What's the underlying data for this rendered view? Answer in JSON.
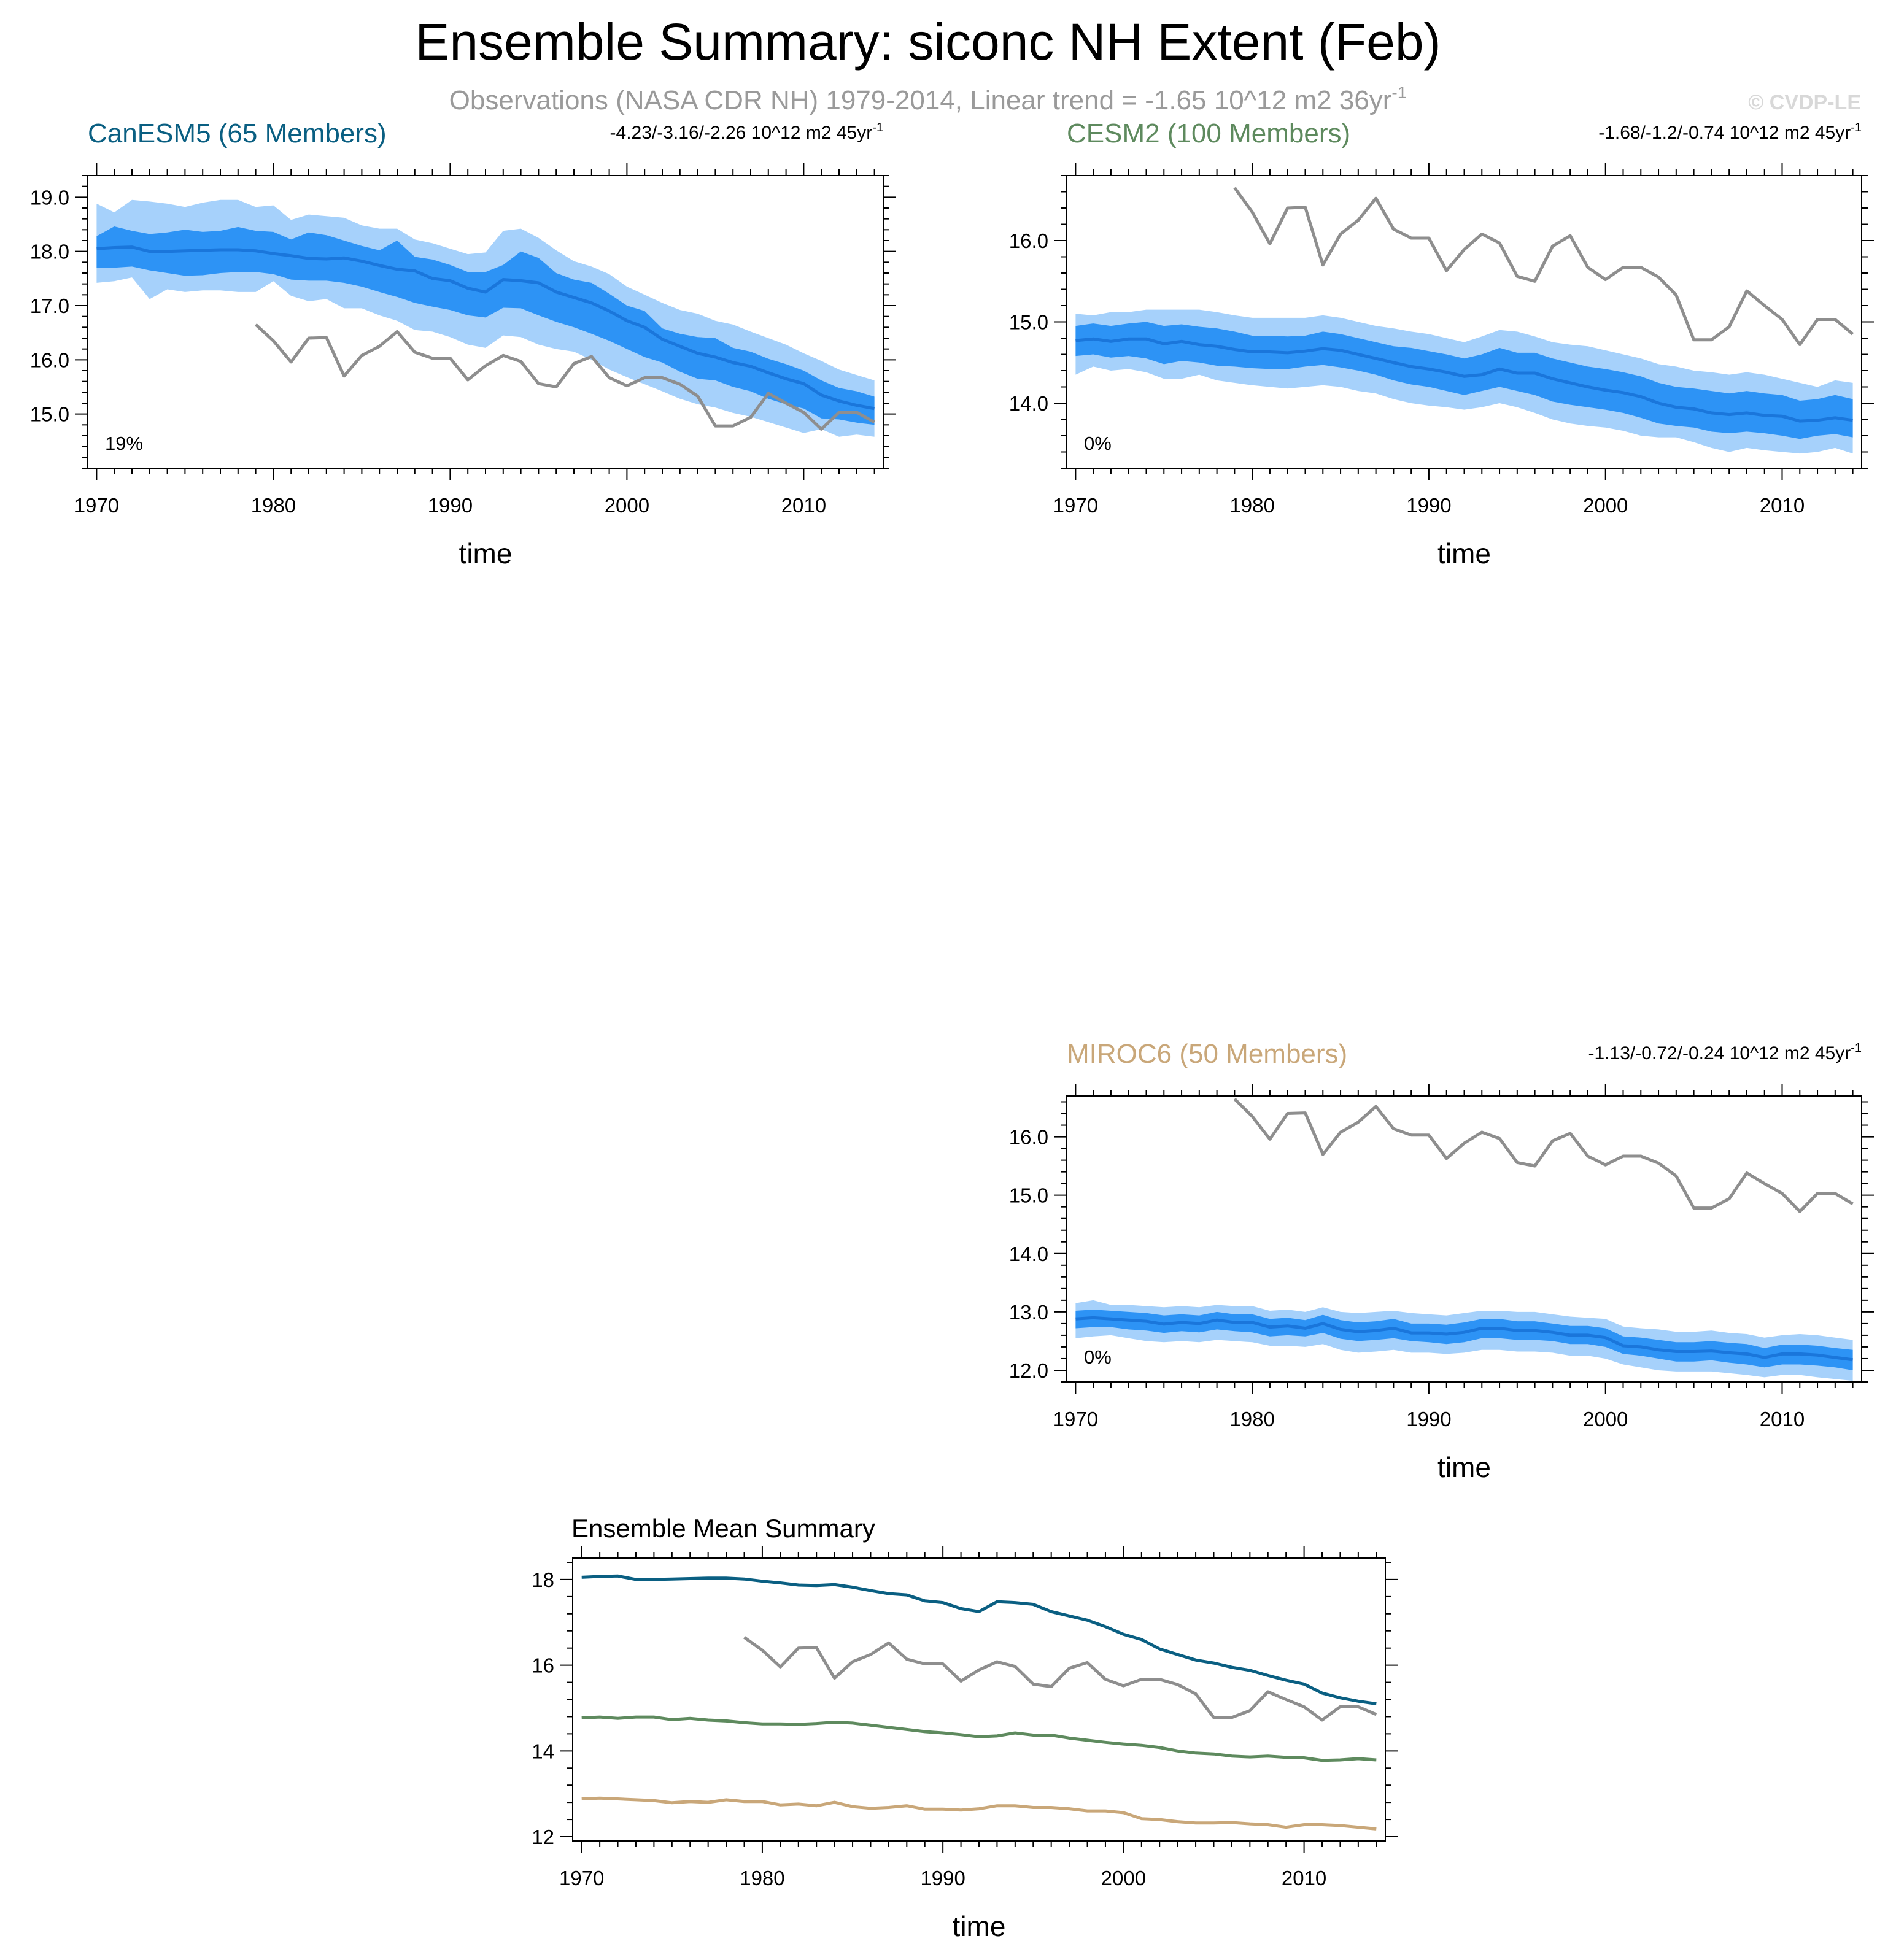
{
  "title": "Ensemble Summary: siconc NH Extent (Feb)",
  "subtitle": "Observations (NASA CDR NH) 1979-2014, Linear trend = -1.65 10^12 m2 36yr",
  "subtitle_exp": "-1",
  "copyright": "© CVDP-LE",
  "colors": {
    "band_outer": "#a6d1fb",
    "band_inner": "#2d93f5",
    "ens_mean": "#1a76db",
    "obs": "#8e8e8e",
    "canesm5": "#0a5f82",
    "cesm2": "#5e8a5e",
    "miroc6": "#c9a779"
  },
  "chart_data": [
    {
      "id": "canesm5",
      "type": "area",
      "title": "CanESM5 (65 Members)",
      "trend_text": "-4.23/-3.16/-2.26 10^12 m2 45yr",
      "trend_exp": "-1",
      "percent_label": "19%",
      "xlabel": "time",
      "xlim": [
        1969.5,
        2014.5
      ],
      "ylim": [
        14.0,
        19.4
      ],
      "xticks": [
        "1970",
        "1980",
        "1990",
        "2000",
        "2010"
      ],
      "yticks": [
        "15.0",
        "16.0",
        "17.0",
        "18.0",
        "19.0"
      ],
      "x_start": 1970,
      "ens_mean": [
        18.05,
        18.07,
        18.08,
        18.0,
        18.0,
        18.01,
        18.02,
        18.03,
        18.03,
        18.01,
        17.96,
        17.92,
        17.87,
        17.86,
        17.88,
        17.82,
        17.74,
        17.67,
        17.64,
        17.5,
        17.46,
        17.32,
        17.25,
        17.48,
        17.46,
        17.42,
        17.25,
        17.15,
        17.05,
        16.9,
        16.72,
        16.6,
        16.38,
        16.25,
        16.12,
        16.05,
        15.95,
        15.88,
        15.76,
        15.65,
        15.56,
        15.35,
        15.24,
        15.16,
        15.1
      ],
      "band_inner_low": [
        17.7,
        17.7,
        17.72,
        17.65,
        17.6,
        17.55,
        17.56,
        17.6,
        17.62,
        17.62,
        17.58,
        17.48,
        17.46,
        17.46,
        17.42,
        17.35,
        17.25,
        17.16,
        17.05,
        16.98,
        16.92,
        16.82,
        16.78,
        16.96,
        16.95,
        16.82,
        16.7,
        16.6,
        16.48,
        16.35,
        16.2,
        16.05,
        15.95,
        15.78,
        15.65,
        15.62,
        15.5,
        15.42,
        15.28,
        15.18,
        15.1,
        14.92,
        14.9,
        14.84,
        14.8
      ],
      "band_inner_high": [
        18.28,
        18.46,
        18.38,
        18.32,
        18.35,
        18.4,
        18.36,
        18.38,
        18.45,
        18.38,
        18.36,
        18.22,
        18.35,
        18.3,
        18.2,
        18.1,
        18.02,
        18.2,
        17.9,
        17.85,
        17.75,
        17.62,
        17.62,
        17.75,
        18.0,
        17.88,
        17.6,
        17.48,
        17.42,
        17.22,
        17.0,
        16.9,
        16.58,
        16.48,
        16.42,
        16.4,
        16.22,
        16.15,
        16.02,
        15.92,
        15.8,
        15.62,
        15.48,
        15.42,
        15.32
      ],
      "band_outer_low": [
        17.42,
        17.45,
        17.52,
        17.12,
        17.3,
        17.25,
        17.28,
        17.28,
        17.25,
        17.25,
        17.45,
        17.18,
        17.08,
        17.12,
        16.95,
        16.95,
        16.82,
        16.72,
        16.55,
        16.52,
        16.42,
        16.28,
        16.22,
        16.45,
        16.42,
        16.28,
        16.2,
        16.15,
        16.0,
        15.82,
        15.68,
        15.55,
        15.42,
        15.28,
        15.18,
        15.12,
        15.02,
        14.95,
        14.85,
        14.75,
        14.65,
        14.72,
        14.58,
        14.62,
        14.58
      ],
      "band_outer_high": [
        18.88,
        18.72,
        18.95,
        18.92,
        18.88,
        18.82,
        18.9,
        18.95,
        18.95,
        18.82,
        18.85,
        18.58,
        18.68,
        18.65,
        18.62,
        18.48,
        18.42,
        18.42,
        18.22,
        18.15,
        18.05,
        17.95,
        17.98,
        18.38,
        18.42,
        18.25,
        18.02,
        17.82,
        17.72,
        17.58,
        17.35,
        17.2,
        17.05,
        16.92,
        16.85,
        16.72,
        16.65,
        16.52,
        16.4,
        16.28,
        16.12,
        15.98,
        15.82,
        15.72,
        15.62
      ],
      "obs_x_start": 1979,
      "obs": [
        16.65,
        16.35,
        15.96,
        16.4,
        16.41,
        15.7,
        16.08,
        16.25,
        16.52,
        16.14,
        16.03,
        16.03,
        15.63,
        15.89,
        16.08,
        15.97,
        15.56,
        15.5,
        15.93,
        16.06,
        15.67,
        15.52,
        15.67,
        15.67,
        15.55,
        15.33,
        14.78,
        14.78,
        14.94,
        15.38,
        15.2,
        15.03,
        14.72,
        15.03,
        15.03,
        14.85
      ]
    },
    {
      "id": "cesm2",
      "type": "area",
      "title": "CESM2 (100 Members)",
      "trend_text": "-1.68/-1.2/-0.74 10^12 m2 45yr",
      "trend_exp": "-1",
      "percent_label": "0%",
      "xlabel": "time",
      "xlim": [
        1969.5,
        2014.5
      ],
      "ylim": [
        13.2,
        16.8
      ],
      "xticks": [
        "1970",
        "1980",
        "1990",
        "2000",
        "2010"
      ],
      "yticks": [
        "14.0",
        "15.0",
        "16.0"
      ],
      "x_start": 1970,
      "ens_mean": [
        14.77,
        14.79,
        14.76,
        14.79,
        14.79,
        14.73,
        14.76,
        14.72,
        14.7,
        14.66,
        14.63,
        14.63,
        14.62,
        14.64,
        14.67,
        14.65,
        14.6,
        14.55,
        14.5,
        14.45,
        14.42,
        14.38,
        14.33,
        14.35,
        14.42,
        14.37,
        14.37,
        14.3,
        14.25,
        14.2,
        14.16,
        14.13,
        14.08,
        14.0,
        13.95,
        13.93,
        13.88,
        13.86,
        13.88,
        13.85,
        13.84,
        13.78,
        13.79,
        13.82,
        13.79
      ],
      "band_inner_low": [
        14.58,
        14.6,
        14.56,
        14.58,
        14.55,
        14.48,
        14.52,
        14.5,
        14.46,
        14.45,
        14.43,
        14.42,
        14.42,
        14.45,
        14.47,
        14.44,
        14.4,
        14.35,
        14.28,
        14.23,
        14.2,
        14.15,
        14.1,
        14.15,
        14.2,
        14.15,
        14.1,
        14.02,
        13.98,
        13.95,
        13.92,
        13.88,
        13.82,
        13.75,
        13.72,
        13.7,
        13.65,
        13.63,
        13.65,
        13.63,
        13.6,
        13.56,
        13.6,
        13.62,
        13.58
      ],
      "band_inner_high": [
        14.95,
        14.98,
        14.95,
        14.98,
        15.0,
        14.95,
        14.97,
        14.94,
        14.92,
        14.88,
        14.83,
        14.83,
        14.82,
        14.83,
        14.88,
        14.85,
        14.8,
        14.75,
        14.7,
        14.68,
        14.64,
        14.6,
        14.55,
        14.6,
        14.68,
        14.62,
        14.62,
        14.55,
        14.5,
        14.45,
        14.42,
        14.38,
        14.33,
        14.25,
        14.2,
        14.18,
        14.15,
        14.12,
        14.15,
        14.12,
        14.1,
        14.03,
        14.05,
        14.1,
        14.05
      ],
      "band_outer_low": [
        14.35,
        14.45,
        14.4,
        14.42,
        14.38,
        14.3,
        14.3,
        14.35,
        14.28,
        14.25,
        14.22,
        14.2,
        14.18,
        14.2,
        14.22,
        14.2,
        14.15,
        14.12,
        14.05,
        14.0,
        13.97,
        13.95,
        13.92,
        13.95,
        14.0,
        13.95,
        13.88,
        13.8,
        13.75,
        13.72,
        13.7,
        13.66,
        13.6,
        13.58,
        13.58,
        13.52,
        13.45,
        13.4,
        13.45,
        13.42,
        13.4,
        13.38,
        13.4,
        13.45,
        13.38
      ],
      "band_outer_high": [
        15.1,
        15.08,
        15.12,
        15.12,
        15.15,
        15.15,
        15.15,
        15.15,
        15.12,
        15.08,
        15.05,
        15.05,
        15.05,
        15.05,
        15.08,
        15.05,
        15.0,
        14.95,
        14.92,
        14.88,
        14.85,
        14.8,
        14.75,
        14.82,
        14.9,
        14.88,
        14.82,
        14.75,
        14.72,
        14.7,
        14.65,
        14.6,
        14.55,
        14.48,
        14.45,
        14.4,
        14.38,
        14.35,
        14.38,
        14.35,
        14.3,
        14.25,
        14.2,
        14.28,
        14.25
      ],
      "obs_x_start": 1979,
      "obs": [
        16.65,
        16.35,
        15.96,
        16.4,
        16.41,
        15.7,
        16.08,
        16.25,
        16.52,
        16.14,
        16.03,
        16.03,
        15.63,
        15.89,
        16.08,
        15.97,
        15.56,
        15.5,
        15.93,
        16.06,
        15.67,
        15.52,
        15.67,
        15.67,
        15.55,
        15.33,
        14.78,
        14.78,
        14.94,
        15.38,
        15.2,
        15.03,
        14.72,
        15.03,
        15.03,
        14.85
      ]
    },
    {
      "id": "miroc6",
      "type": "area",
      "title": "MIROC6 (50 Members)",
      "trend_text": "-1.13/-0.72/-0.24 10^12 m2 45yr",
      "trend_exp": "-1",
      "percent_label": "0%",
      "xlabel": "time",
      "xlim": [
        1969.5,
        2014.5
      ],
      "ylim": [
        11.8,
        16.7
      ],
      "xticks": [
        "1970",
        "1980",
        "1990",
        "2000",
        "2010"
      ],
      "yticks": [
        "12.0",
        "13.0",
        "14.0",
        "15.0",
        "16.0"
      ],
      "x_start": 1970,
      "ens_mean": [
        12.88,
        12.9,
        12.88,
        12.86,
        12.84,
        12.79,
        12.82,
        12.8,
        12.86,
        12.82,
        12.82,
        12.74,
        12.76,
        12.72,
        12.8,
        12.7,
        12.66,
        12.68,
        12.72,
        12.64,
        12.64,
        12.62,
        12.65,
        12.72,
        12.72,
        12.68,
        12.68,
        12.65,
        12.6,
        12.6,
        12.56,
        12.42,
        12.4,
        12.35,
        12.32,
        12.32,
        12.33,
        12.3,
        12.28,
        12.22,
        12.28,
        12.28,
        12.26,
        12.22,
        12.18
      ],
      "band_inner_low": [
        12.72,
        12.74,
        12.74,
        12.7,
        12.68,
        12.64,
        12.67,
        12.65,
        12.7,
        12.67,
        12.65,
        12.58,
        12.6,
        12.58,
        12.64,
        12.54,
        12.5,
        12.52,
        12.55,
        12.5,
        12.48,
        12.45,
        12.48,
        12.55,
        12.55,
        12.52,
        12.52,
        12.5,
        12.45,
        12.45,
        12.4,
        12.28,
        12.25,
        12.2,
        12.15,
        12.15,
        12.17,
        12.13,
        12.1,
        12.05,
        12.1,
        12.1,
        12.08,
        12.05,
        12.0
      ],
      "band_inner_high": [
        13.02,
        13.04,
        13.02,
        13.0,
        12.98,
        12.94,
        12.96,
        12.94,
        13.0,
        12.96,
        12.96,
        12.88,
        12.9,
        12.86,
        12.95,
        12.86,
        12.82,
        12.84,
        12.88,
        12.8,
        12.8,
        12.78,
        12.82,
        12.88,
        12.88,
        12.84,
        12.84,
        12.8,
        12.76,
        12.76,
        12.72,
        12.58,
        12.56,
        12.52,
        12.48,
        12.48,
        12.5,
        12.47,
        12.45,
        12.38,
        12.44,
        12.44,
        12.42,
        12.38,
        12.35
      ],
      "band_outer_low": [
        12.55,
        12.58,
        12.6,
        12.55,
        12.5,
        12.48,
        12.5,
        12.48,
        12.52,
        12.5,
        12.48,
        12.42,
        12.42,
        12.4,
        12.45,
        12.35,
        12.3,
        12.32,
        12.35,
        12.3,
        12.3,
        12.28,
        12.3,
        12.35,
        12.35,
        12.32,
        12.32,
        12.3,
        12.25,
        12.25,
        12.2,
        12.1,
        12.05,
        12.0,
        11.98,
        11.98,
        11.98,
        11.95,
        11.92,
        11.88,
        11.92,
        11.92,
        11.88,
        11.85,
        11.82
      ],
      "band_outer_high": [
        13.15,
        13.2,
        13.12,
        13.12,
        13.1,
        13.08,
        13.1,
        13.08,
        13.12,
        13.1,
        13.1,
        13.02,
        13.04,
        13.0,
        13.08,
        13.0,
        12.98,
        13.0,
        13.02,
        12.98,
        12.96,
        12.94,
        12.98,
        13.02,
        13.02,
        13.0,
        13.0,
        12.96,
        12.92,
        12.9,
        12.88,
        12.75,
        12.72,
        12.7,
        12.66,
        12.66,
        12.68,
        12.64,
        12.62,
        12.56,
        12.6,
        12.62,
        12.6,
        12.56,
        12.52
      ],
      "obs_x_start": 1979,
      "obs": [
        16.65,
        16.35,
        15.96,
        16.4,
        16.41,
        15.7,
        16.08,
        16.25,
        16.52,
        16.14,
        16.03,
        16.03,
        15.63,
        15.89,
        16.08,
        15.97,
        15.56,
        15.5,
        15.93,
        16.06,
        15.67,
        15.52,
        15.67,
        15.67,
        15.55,
        15.33,
        14.78,
        14.78,
        14.94,
        15.38,
        15.2,
        15.03,
        14.72,
        15.03,
        15.03,
        14.85
      ]
    },
    {
      "id": "summary",
      "type": "line",
      "title": "Ensemble Mean Summary",
      "xlabel": "time",
      "xlim": [
        1969.5,
        2014.5
      ],
      "ylim": [
        11.9,
        18.5
      ],
      "xticks": [
        "1970",
        "1980",
        "1990",
        "2000",
        "2010"
      ],
      "yticks": [
        "12",
        "14",
        "16",
        "18"
      ],
      "x_start": 1970,
      "obs_x_start": 1979,
      "obs": [
        16.65,
        16.35,
        15.96,
        16.4,
        16.41,
        15.7,
        16.08,
        16.25,
        16.52,
        16.14,
        16.03,
        16.03,
        15.63,
        15.89,
        16.08,
        15.97,
        15.56,
        15.5,
        15.93,
        16.06,
        15.67,
        15.52,
        15.67,
        15.67,
        15.55,
        15.33,
        14.78,
        14.78,
        14.94,
        15.38,
        15.2,
        15.03,
        14.72,
        15.03,
        15.03,
        14.85
      ],
      "series": [
        {
          "name": "CanESM5",
          "color_key": "canesm5",
          "values": [
            18.05,
            18.07,
            18.08,
            18.0,
            18.0,
            18.01,
            18.02,
            18.03,
            18.03,
            18.01,
            17.96,
            17.92,
            17.87,
            17.86,
            17.88,
            17.82,
            17.74,
            17.67,
            17.64,
            17.5,
            17.46,
            17.32,
            17.25,
            17.48,
            17.46,
            17.42,
            17.25,
            17.15,
            17.05,
            16.9,
            16.72,
            16.6,
            16.38,
            16.25,
            16.12,
            16.05,
            15.95,
            15.88,
            15.76,
            15.65,
            15.56,
            15.35,
            15.24,
            15.16,
            15.1
          ]
        },
        {
          "name": "CESM2",
          "color_key": "cesm2",
          "values": [
            14.77,
            14.79,
            14.76,
            14.79,
            14.79,
            14.73,
            14.76,
            14.72,
            14.7,
            14.66,
            14.63,
            14.63,
            14.62,
            14.64,
            14.67,
            14.65,
            14.6,
            14.55,
            14.5,
            14.45,
            14.42,
            14.38,
            14.33,
            14.35,
            14.42,
            14.37,
            14.37,
            14.3,
            14.25,
            14.2,
            14.16,
            14.13,
            14.08,
            14.0,
            13.95,
            13.93,
            13.88,
            13.86,
            13.88,
            13.85,
            13.84,
            13.78,
            13.79,
            13.82,
            13.79
          ]
        },
        {
          "name": "MIROC6",
          "color_key": "miroc6",
          "values": [
            12.88,
            12.9,
            12.88,
            12.86,
            12.84,
            12.79,
            12.82,
            12.8,
            12.86,
            12.82,
            12.82,
            12.74,
            12.76,
            12.72,
            12.8,
            12.7,
            12.66,
            12.68,
            12.72,
            12.64,
            12.64,
            12.62,
            12.65,
            12.72,
            12.72,
            12.68,
            12.68,
            12.65,
            12.6,
            12.6,
            12.56,
            12.42,
            12.4,
            12.35,
            12.32,
            12.32,
            12.33,
            12.3,
            12.28,
            12.22,
            12.28,
            12.28,
            12.26,
            12.22,
            12.18
          ]
        }
      ]
    }
  ]
}
